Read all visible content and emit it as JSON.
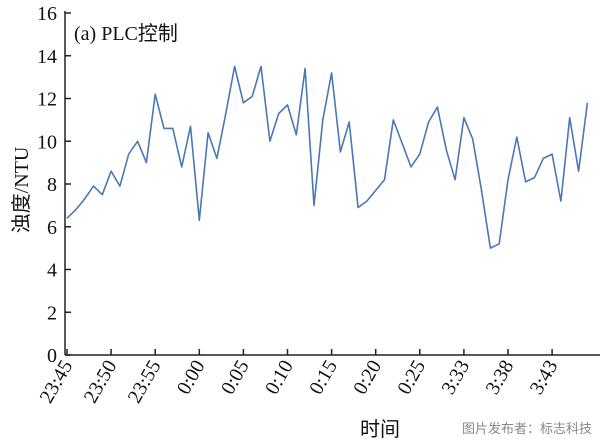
{
  "chart_data": {
    "type": "line",
    "title": "(a)  PLC控制",
    "xlabel": "时间",
    "ylabel": "浊度/NTU",
    "ylim": [
      0,
      16
    ],
    "yticks": [
      0,
      2,
      4,
      6,
      8,
      10,
      12,
      14,
      16
    ],
    "xtick_labels": [
      "23:45",
      "23:50",
      "23:55",
      "0:00",
      "0:05",
      "0:10",
      "0:15",
      "0:20",
      "0:25",
      "3:33",
      "3:38",
      "3:43"
    ],
    "grid": false,
    "line_color": "#4a78b5",
    "series": [
      {
        "values": [
          6.4,
          6.8,
          7.3,
          7.9,
          7.5,
          8.6,
          7.9,
          9.4,
          10.0,
          9.0,
          12.2,
          10.6,
          10.6,
          8.8,
          10.7,
          6.3,
          10.4,
          9.2,
          11.3,
          13.5,
          11.8,
          12.1,
          13.5,
          10.0,
          11.3,
          11.7,
          10.3,
          13.4,
          7.0,
          11.0,
          13.2,
          9.5,
          10.9,
          6.9,
          7.2,
          7.7,
          8.2,
          11.0,
          9.9,
          8.8,
          9.4,
          10.9,
          11.6,
          9.6,
          8.2,
          11.1,
          10.1,
          7.7,
          5.0,
          5.2,
          8.2,
          10.2,
          8.1,
          8.3,
          9.2,
          9.4,
          7.2,
          11.1,
          8.6,
          11.8
        ]
      }
    ]
  },
  "watermark": "图片发布者：标志科技"
}
